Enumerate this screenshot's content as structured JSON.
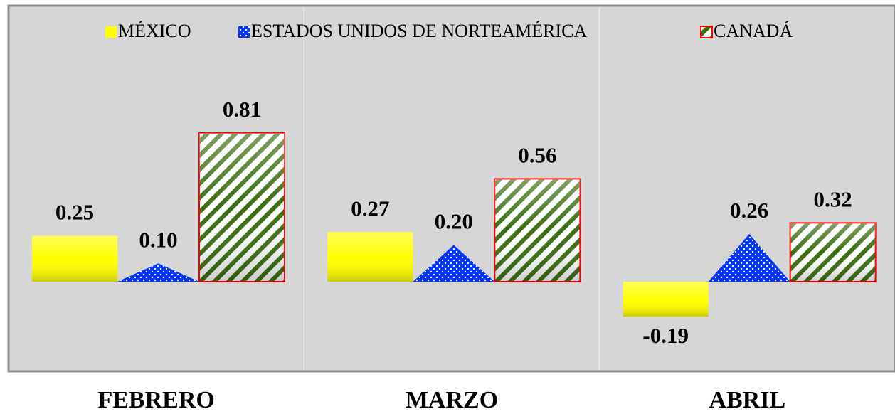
{
  "chart_data": {
    "type": "bar",
    "categories": [
      "FEBRERO",
      "MARZO",
      "ABRIL"
    ],
    "series": [
      {
        "name": "MÉXICO",
        "color": "#ffff00",
        "shape": "cylinder",
        "pattern": "solid",
        "values": [
          0.25,
          0.27,
          -0.19
        ],
        "value_labels": [
          "0.25",
          "0.27",
          "-0.19"
        ]
      },
      {
        "name": "ESTADOS UNIDOS DE NORTEAMÉRICA",
        "color": "#0033ff",
        "shape": "triangle",
        "pattern": "dots",
        "values": [
          0.1,
          0.2,
          0.26
        ],
        "value_labels": [
          "0.10",
          "0.20",
          "0.26"
        ]
      },
      {
        "name": "CANADÁ",
        "color": "#3a6e10",
        "edgecolor": "#ff0000",
        "shape": "cylinder",
        "pattern": "stripes",
        "values": [
          0.81,
          0.56,
          0.32
        ],
        "value_labels": [
          "0.81",
          "0.56",
          "0.32"
        ]
      }
    ]
  }
}
